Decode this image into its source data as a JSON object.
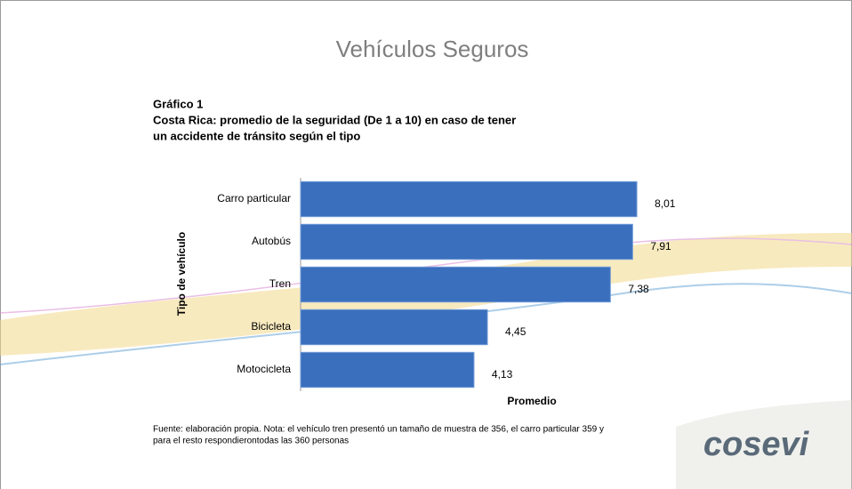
{
  "slide_title": "Vehículos Seguros",
  "logo": "cosevi",
  "chart_data": {
    "type": "bar",
    "orientation": "horizontal",
    "title_lines": [
      "Gráfico 1",
      "Costa Rica: promedio de la seguridad (De 1 a 10) en caso de tener",
      "un accidente de tránsito según el tipo"
    ],
    "categories": [
      "Carro particular",
      "Autobús",
      "Tren",
      "Bicicleta",
      "Motocicleta"
    ],
    "values": [
      8.01,
      7.91,
      7.38,
      4.45,
      4.13
    ],
    "value_labels": [
      "8,01",
      "7,91",
      "7,38",
      "4,45",
      "4,13"
    ],
    "color": "#3a6fbd",
    "xlim": [
      0,
      10
    ],
    "x_label": "Promedio",
    "y_label": "Tipo de vehículo",
    "note_lines": [
      "Fuente: elaboración propia. Nota: el vehículo tren presentó un tamaño de muestra de 356, el carro particular 359 y",
      "para el resto respondierontodas las 360 personas"
    ]
  }
}
